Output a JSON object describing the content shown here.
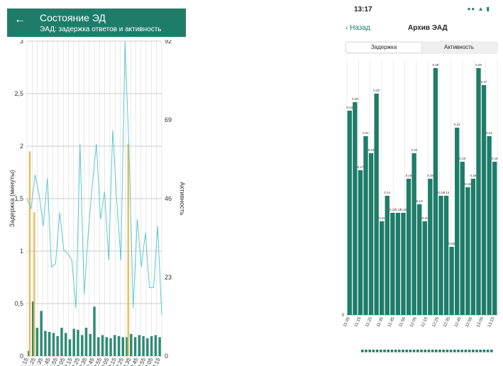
{
  "android": {
    "back_icon": "arrow-left-icon",
    "title": "Состояние ЭД",
    "subtitle": "ЭАД: задержка ответов и активность",
    "colors": {
      "appbar": "#1e7d69",
      "bars": "#2e8b74",
      "line": "#5cc8d0",
      "yellow": "#e6b84a"
    },
    "chart_data": {
      "type": "bar",
      "left_axis_label": "Задержка (минуты)",
      "right_axis_label": "Активность",
      "left_ticks": [
        "0",
        "0,5",
        "1",
        "1,5",
        "2",
        "2,5",
        "3"
      ],
      "right_ticks": [
        "0",
        "23",
        "46",
        "69",
        "92"
      ],
      "x_ticks": [
        "1:15",
        "1:25",
        "1:35",
        "1:45",
        "1:55",
        "2:05",
        "2:15",
        "2:25",
        "2:35",
        "2:45",
        "2:55",
        "3:05",
        "3:15",
        "3:25",
        "3:35",
        "3:45",
        "3:55",
        "4:05",
        "4:15"
      ],
      "ylim_left": [
        0,
        3
      ],
      "ylim_right": [
        0,
        92
      ],
      "delay_bars": [
        0.05,
        0.52,
        0.27,
        0.43,
        0.24,
        0.23,
        0.22,
        0.19,
        0.27,
        0.22,
        0.16,
        0.26,
        0.25,
        0.2,
        0.27,
        0.21,
        0.47,
        0.18,
        0.2,
        0.18,
        0.17,
        0.2,
        0.19,
        0.18,
        0.18,
        0.21,
        0.18,
        0.2,
        0.19,
        0.17,
        0.19,
        0.2,
        0.18
      ],
      "activity_line": [
        46,
        43,
        53,
        47,
        38,
        52,
        26,
        27,
        42,
        31,
        30,
        28,
        14,
        62,
        18,
        36,
        50,
        62,
        40,
        48,
        28,
        66,
        45,
        28,
        92,
        60,
        14,
        40,
        26,
        36,
        20,
        20,
        38,
        12
      ],
      "yellow_bars": [
        {
          "position": 0.5,
          "value": 1.95
        },
        {
          "position": 1.6,
          "value": 1.37
        },
        {
          "position": 24.6,
          "value": 2.02
        }
      ]
    }
  },
  "ios": {
    "time": "13:17",
    "status_icons": "wifi-icon battery-icon",
    "back_label": "Назад",
    "back_icon": "chevron-left-icon",
    "title": "Архив ЭАД",
    "segments": [
      "Задержка",
      "Активность"
    ],
    "selected_segment": "Задержка",
    "colors": {
      "bars": "#1e7d69",
      "axis": "#999999"
    },
    "chart_data": {
      "type": "bar",
      "values": [
        0.24,
        0.25,
        0.17,
        0.21,
        0.19,
        0.26,
        0.11,
        0.14,
        0.12,
        0.12,
        0.12,
        0.16,
        0.19,
        0.13,
        0.11,
        0.16,
        0.29,
        0.14,
        0.14,
        0.08,
        0.22,
        0.18,
        0.15,
        0.16,
        0.29,
        0.27,
        0.21,
        0.18
      ],
      "labels": [
        "0.24",
        "0.25",
        "0.17",
        "0.21",
        "0.19",
        "0.26",
        "0.11",
        "0.14",
        "0.12",
        "0.12",
        "0.12",
        "0.16",
        "0.19",
        "0.13",
        "0.11",
        "0.16",
        "0.29",
        "0.14",
        "0.14",
        "0.08",
        "0.22",
        "0.18",
        "0.15",
        "0.16",
        "0.29",
        "0.27",
        "0.21",
        "0.18"
      ],
      "x_ticks": [
        "11:05",
        "11:15",
        "11:25",
        "11:35",
        "11:45",
        "11:55",
        "12:05",
        "12:15",
        "12:25",
        "12:35",
        "12:45",
        "12:55",
        "13:05",
        "13:15"
      ],
      "y_zero_label": "0",
      "ylim": [
        0,
        0.3
      ]
    }
  }
}
